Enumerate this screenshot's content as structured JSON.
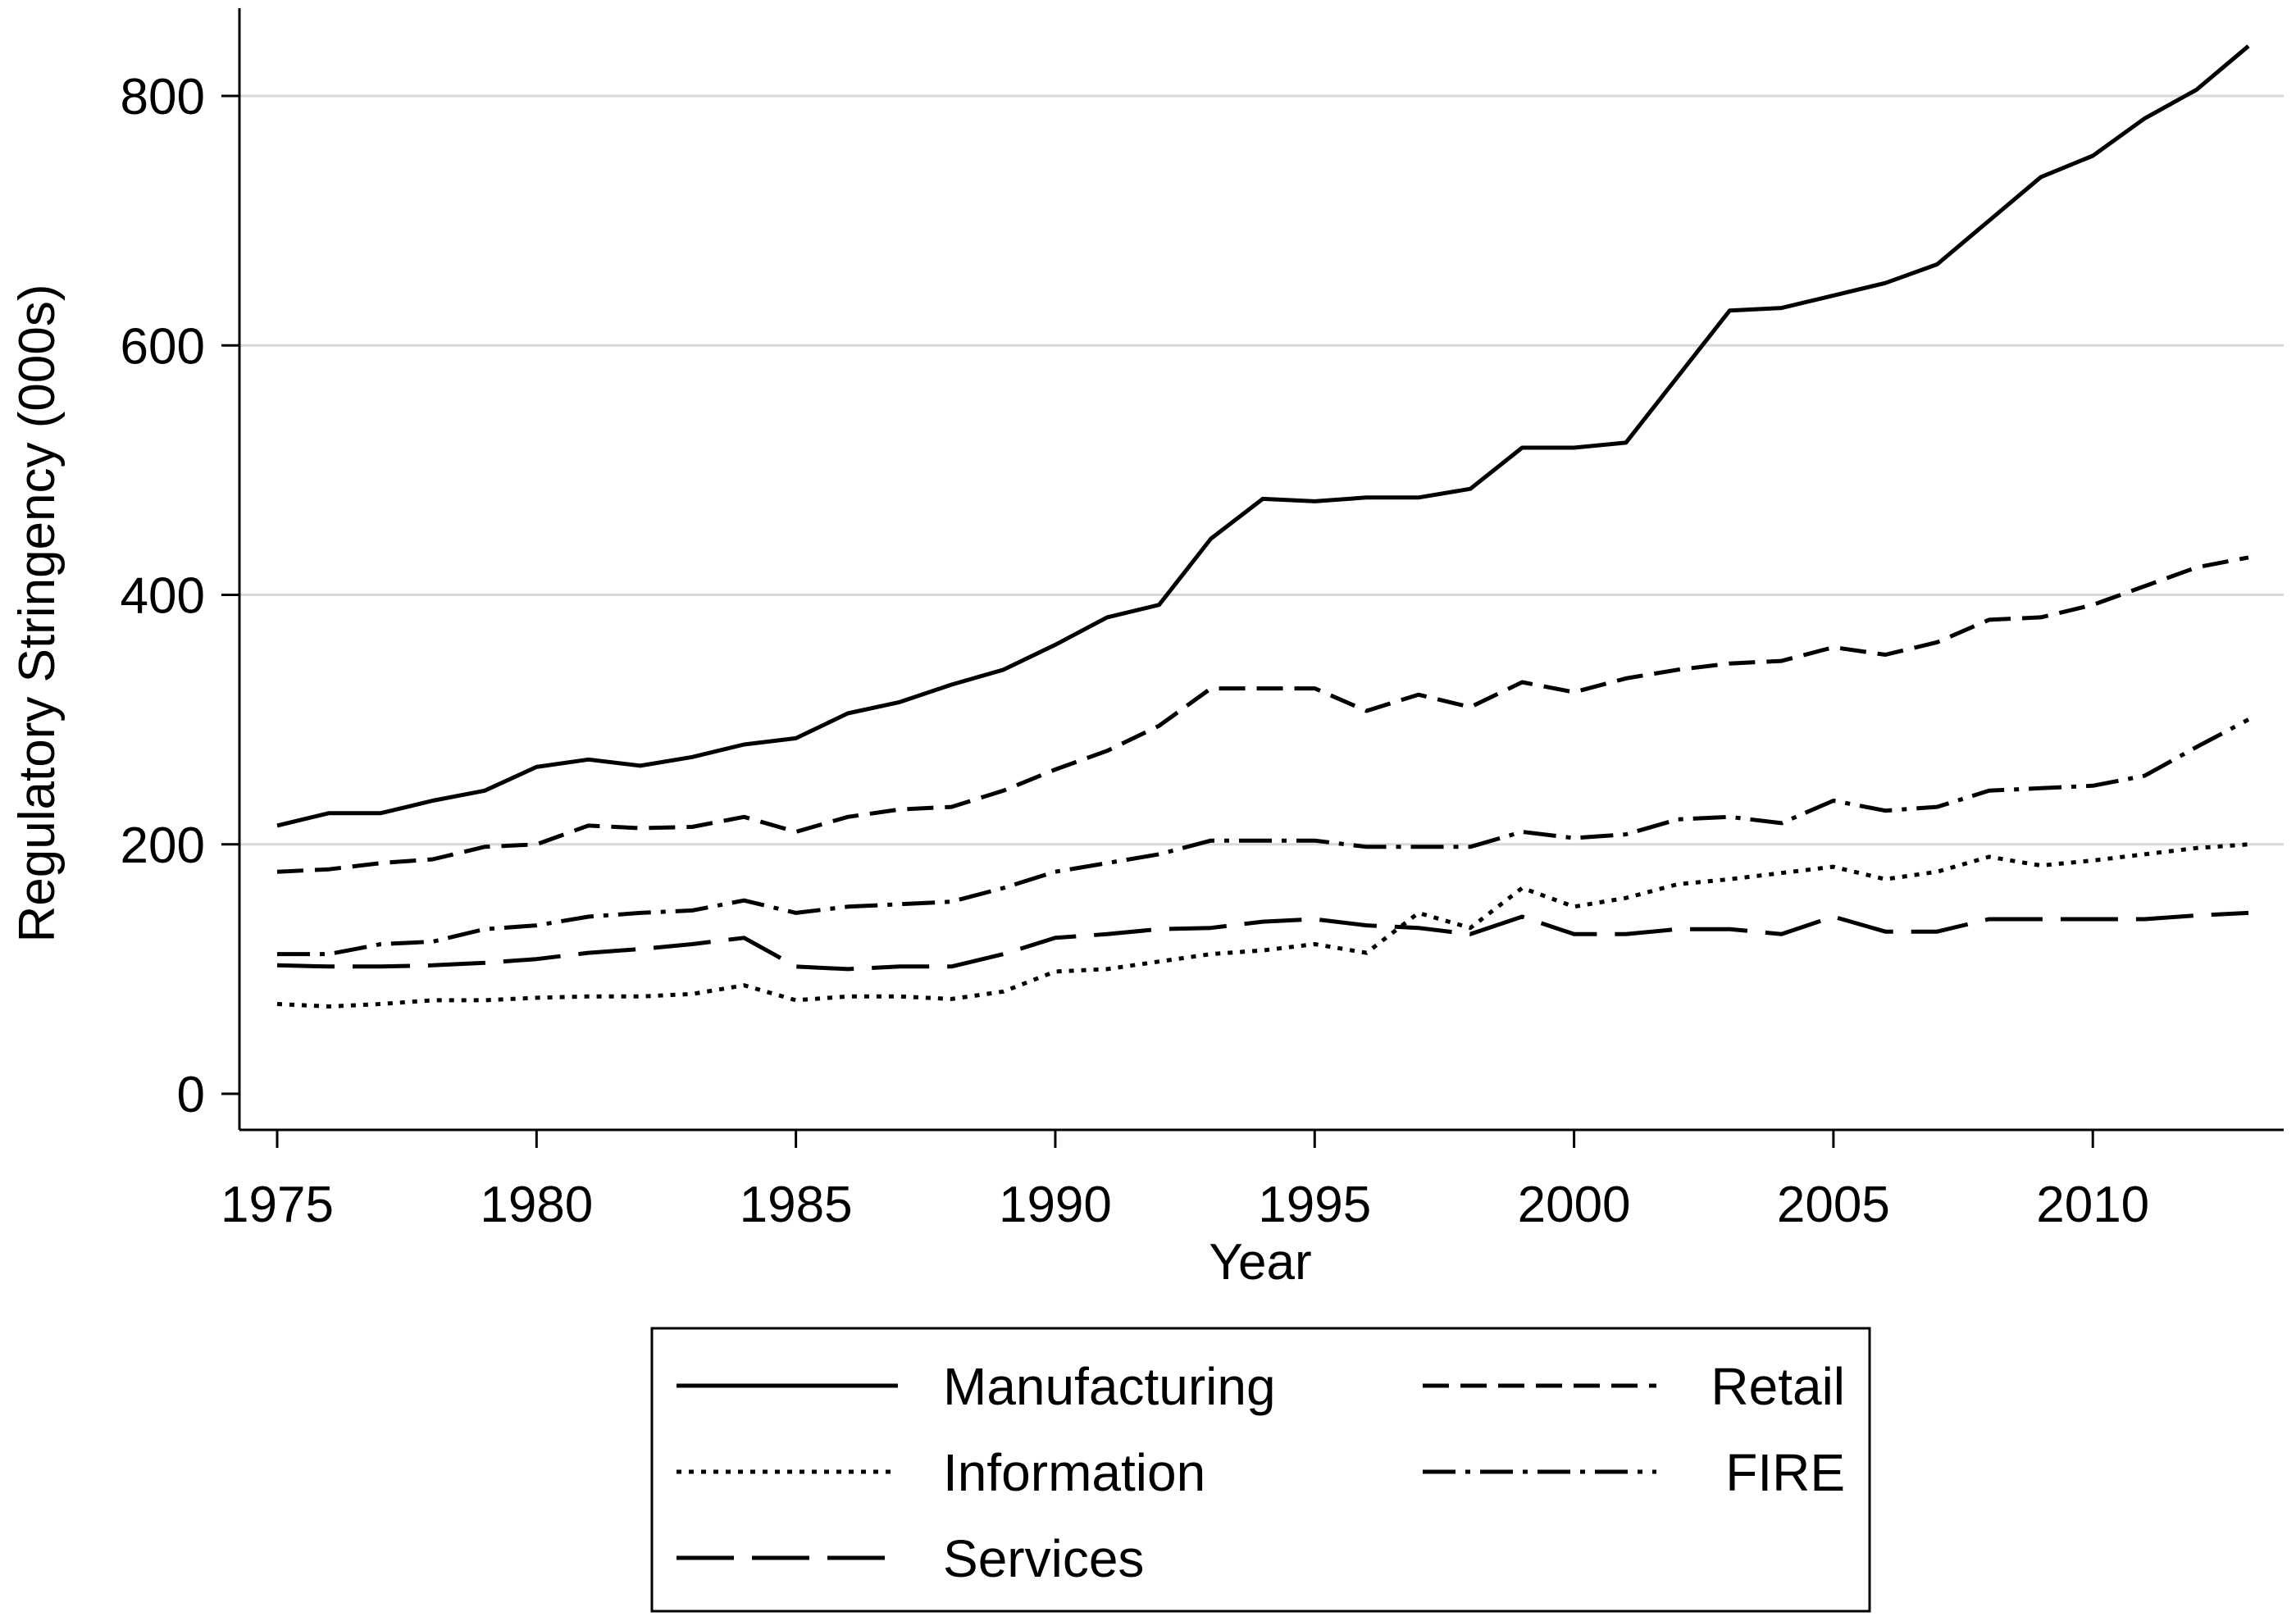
{
  "chart_data": {
    "type": "line",
    "title": "",
    "xlabel": "Year",
    "ylabel": "Regulatory Stringency (000s)",
    "xlim": [
      1975,
      2013
    ],
    "ylim": [
      0,
      860
    ],
    "xticks": [
      1975,
      1980,
      1985,
      1990,
      1995,
      2000,
      2005,
      2010
    ],
    "yticks": [
      0,
      200,
      400,
      600,
      800
    ],
    "grid": "horizontal",
    "legend": "bottom",
    "x": [
      1975,
      1976,
      1977,
      1978,
      1979,
      1980,
      1981,
      1982,
      1983,
      1984,
      1985,
      1986,
      1987,
      1988,
      1989,
      1990,
      1991,
      1992,
      1993,
      1994,
      1995,
      1996,
      1997,
      1998,
      1999,
      2000,
      2001,
      2002,
      2003,
      2004,
      2005,
      2006,
      2007,
      2008,
      2009,
      2010,
      2011,
      2012,
      2013
    ],
    "series": [
      {
        "name": "Manufacturing",
        "dash": "solid",
        "values": [
          215,
          225,
          225,
          235,
          243,
          262,
          268,
          263,
          270,
          280,
          285,
          305,
          314,
          328,
          340,
          360,
          382,
          392,
          445,
          477,
          475,
          478,
          478,
          485,
          518,
          518,
          522,
          575,
          628,
          630,
          640,
          650,
          665,
          700,
          735,
          752,
          782,
          805,
          840
        ]
      },
      {
        "name": "Retail",
        "dash": "dash",
        "values": [
          178,
          180,
          185,
          188,
          198,
          200,
          215,
          213,
          214,
          222,
          210,
          222,
          228,
          230,
          243,
          260,
          275,
          295,
          325,
          325,
          325,
          307,
          320,
          310,
          330,
          322,
          333,
          340,
          345,
          347,
          358,
          352,
          362,
          380,
          382,
          392,
          407,
          422,
          430
        ]
      },
      {
        "name": "Information",
        "dash": "dot",
        "values": [
          72,
          70,
          72,
          75,
          75,
          77,
          78,
          78,
          80,
          87,
          75,
          78,
          78,
          76,
          82,
          98,
          100,
          106,
          112,
          115,
          120,
          113,
          145,
          133,
          165,
          150,
          157,
          168,
          172,
          177,
          182,
          172,
          178,
          190,
          183,
          187,
          192,
          197,
          200
        ]
      },
      {
        "name": "FIRE",
        "dash": "dashdot",
        "values": [
          112,
          112,
          120,
          122,
          132,
          135,
          142,
          145,
          147,
          155,
          145,
          150,
          152,
          154,
          165,
          178,
          185,
          192,
          203,
          203,
          203,
          198,
          198,
          198,
          210,
          205,
          208,
          220,
          222,
          217,
          235,
          227,
          230,
          243,
          245,
          247,
          255,
          278,
          300
        ]
      },
      {
        "name": "Services",
        "dash": "longdash",
        "values": [
          103,
          102,
          102,
          103,
          105,
          108,
          113,
          116,
          120,
          125,
          102,
          100,
          102,
          102,
          112,
          125,
          128,
          132,
          133,
          138,
          140,
          135,
          133,
          128,
          142,
          128,
          128,
          132,
          132,
          128,
          142,
          130,
          130,
          140,
          140,
          140,
          140,
          143,
          145
        ]
      }
    ]
  }
}
